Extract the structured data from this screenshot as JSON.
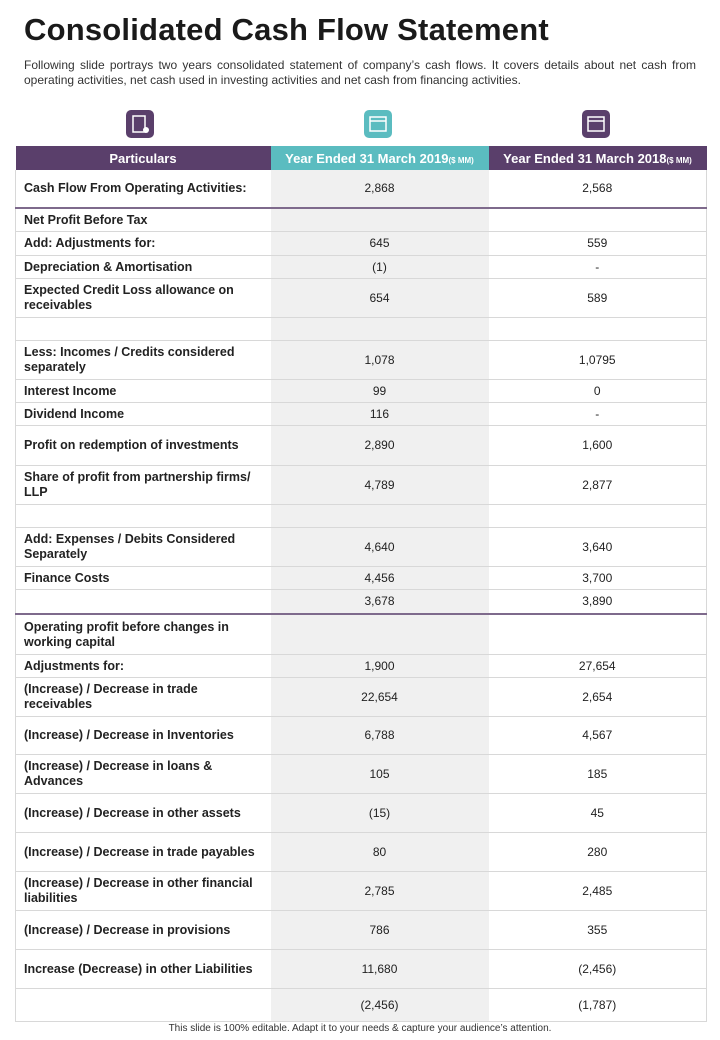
{
  "header": {
    "title": "Consolidated Cash Flow Statement",
    "subtitle": "Following slide portrays two years consolidated statement of company’s cash flows. It covers details about net cash from operating activities, net cash used in investing activities and net cash from financing activities."
  },
  "table": {
    "columns": [
      {
        "label": "Particulars"
      },
      {
        "label": "Year Ended 31 March 2019",
        "unit": "($ MM)"
      },
      {
        "label": "Year Ended 31 March 2018",
        "unit": "($ MM)"
      }
    ],
    "rows": [
      [
        "Cash Flow From Operating Activities:",
        "2,868",
        "2,568"
      ],
      [
        "Net Profit Before Tax",
        null,
        null
      ],
      [
        "Add: Adjustments for:",
        "645",
        "559"
      ],
      [
        "Depreciation & Amortisation",
        "(1)",
        "-"
      ],
      [
        "Expected Credit Loss allowance on receivables",
        "654",
        "589"
      ],
      [
        null,
        null,
        null
      ],
      [
        "Less: Incomes / Credits considered separately",
        "1,078",
        "1,0795"
      ],
      [
        "Interest Income",
        "99",
        "0"
      ],
      [
        "Dividend Income",
        "116",
        "-"
      ],
      [
        "Profit on redemption of investments",
        "2,890",
        "1,600"
      ],
      [
        "Share of profit from partnership firms/ LLP",
        "4,789",
        "2,877"
      ],
      [
        null,
        null,
        null
      ],
      [
        "Add: Expenses / Debits Considered Separately",
        "4,640",
        "3,640"
      ],
      [
        "Finance Costs",
        "4,456",
        "3,700"
      ],
      [
        null,
        "3,678",
        "3,890"
      ],
      [
        "Operating profit before changes in working capital",
        null,
        null
      ],
      [
        "Adjustments for:",
        "1,900",
        "27,654"
      ],
      [
        "(Increase) / Decrease in trade receivables",
        "22,654",
        "2,654"
      ],
      [
        "(Increase) / Decrease in Inventories",
        "6,788",
        "4,567"
      ],
      [
        "(Increase) / Decrease in loans & Advances",
        "105",
        "185"
      ],
      [
        "(Increase) / Decrease in other assets",
        "(15)",
        "45"
      ],
      [
        "(Increase) / Decrease in trade payables",
        "80",
        "280"
      ],
      [
        "(Increase) / Decrease in other financial liabilities",
        "2,785",
        "2,485"
      ],
      [
        "(Increase) / Decrease in provisions",
        "786",
        "355"
      ],
      [
        "Increase (Decrease) in other Liabilities",
        "11,680",
        "(2,456)"
      ],
      [
        null,
        "(2,456)",
        "(1,787)"
      ]
    ]
  },
  "footer": "This slide is 100% editable.  Adapt it to your needs & capture your audience’s attention."
}
